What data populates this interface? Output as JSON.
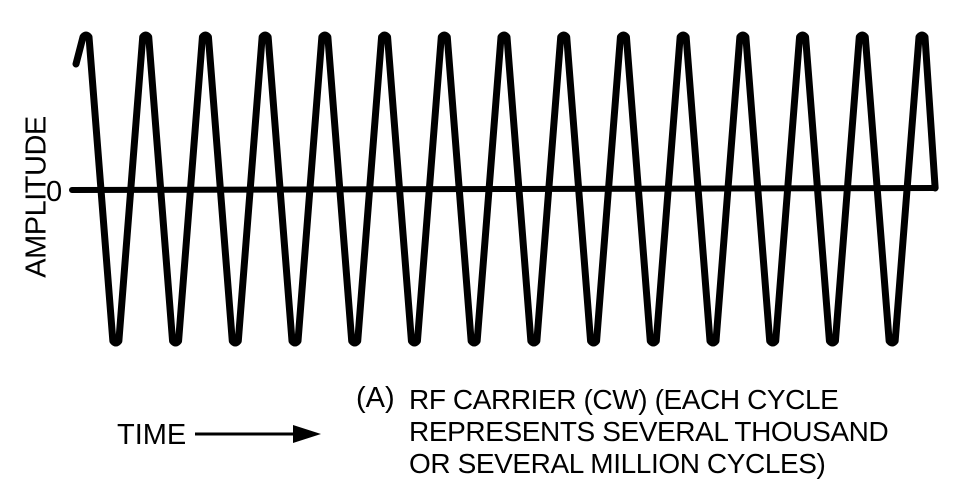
{
  "figure": {
    "y_axis_label": "AMPLITUDE",
    "zero_label": "0",
    "time_label": "TIME",
    "caption_marker": "(A)",
    "caption_lines": [
      "RF CARRIER (CW) (EACH CYCLE",
      "REPRESENTS SEVERAL THOUSAND",
      "OR SEVERAL MILLION CYCLES)"
    ],
    "waveform": {
      "cycles": 15,
      "color": "#000000"
    }
  }
}
